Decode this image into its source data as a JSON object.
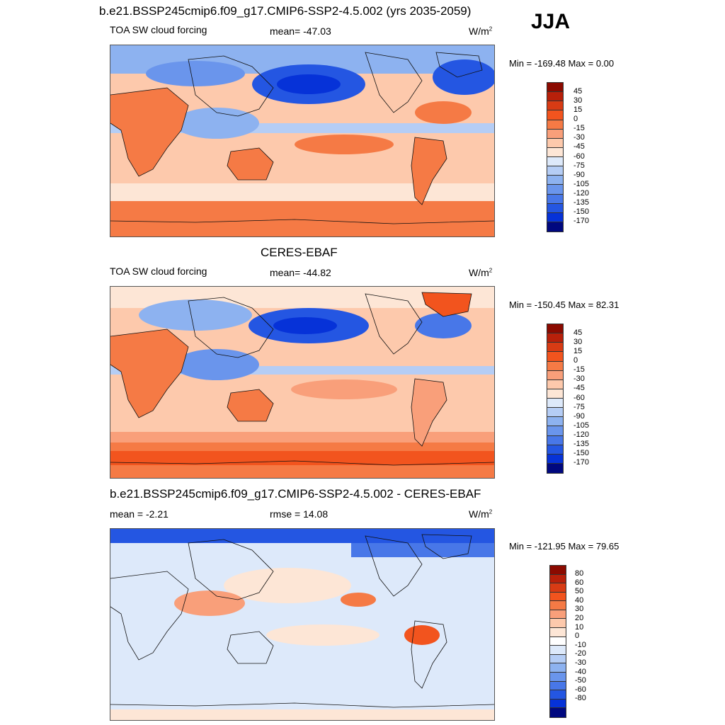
{
  "season": "JJA",
  "panels": [
    {
      "title": "b.e21.BSSP245cmip6.f09_g17.CMIP6-SSP2-4.5.002 (yrs 2035-2059)",
      "left_label": "TOA SW cloud forcing",
      "center_label": "mean= -47.03",
      "units": "W/m",
      "units_exp": "2",
      "minmax": "Min = -169.48 Max =   0.00",
      "colorbar": {
        "colors": [
          "#8b0a00",
          "#b8200a",
          "#d83b14",
          "#f2541e",
          "#f57a45",
          "#f99f7a",
          "#fdc9ac",
          "#fde6d6",
          "#dde9fa",
          "#b5cdf5",
          "#8db2f0",
          "#6a95ec",
          "#4877e8",
          "#2456e2",
          "#0632d8",
          "#00087f"
        ],
        "labels": [
          "45",
          "30",
          "15",
          "0",
          "-15",
          "-30",
          "-45",
          "-60",
          "-75",
          "-90",
          "-105",
          "-120",
          "-135",
          "-150",
          "-170"
        ]
      }
    },
    {
      "title": "CERES-EBAF",
      "left_label": "TOA SW cloud forcing",
      "center_label": "mean= -44.82",
      "units": "W/m",
      "units_exp": "2",
      "minmax": "Min = -150.45 Max =  82.31",
      "colorbar": {
        "colors": [
          "#8b0a00",
          "#b8200a",
          "#d83b14",
          "#f2541e",
          "#f57a45",
          "#f99f7a",
          "#fdc9ac",
          "#fde6d6",
          "#dde9fa",
          "#b5cdf5",
          "#8db2f0",
          "#6a95ec",
          "#4877e8",
          "#2456e2",
          "#0632d8",
          "#00087f"
        ],
        "labels": [
          "45",
          "30",
          "15",
          "0",
          "-15",
          "-30",
          "-45",
          "-60",
          "-75",
          "-90",
          "-105",
          "-120",
          "-135",
          "-150",
          "-170"
        ]
      }
    },
    {
      "title": "b.e21.BSSP245cmip6.f09_g17.CMIP6-SSP2-4.5.002 - CERES-EBAF",
      "left_label": "mean =  -2.21",
      "center_label": "rmse =  14.08",
      "units": "W/m",
      "units_exp": "2",
      "minmax": "Min = -121.95 Max =  79.65",
      "colorbar": {
        "colors": [
          "#8b0a00",
          "#b8200a",
          "#d83b14",
          "#f2541e",
          "#f57a45",
          "#f99f7a",
          "#fdc9ac",
          "#fde6d6",
          "#ffffff",
          "#dde9fa",
          "#b5cdf5",
          "#8db2f0",
          "#6a95ec",
          "#4877e8",
          "#2456e2",
          "#0632d8",
          "#00087f"
        ],
        "labels": [
          "80",
          "60",
          "50",
          "40",
          "30",
          "20",
          "10",
          "0",
          "-10",
          "-20",
          "-30",
          "-40",
          "-50",
          "-60",
          "-80"
        ]
      }
    }
  ],
  "colors": {
    "ocean_base_1": "#fdc9ac",
    "ocean_base_2": "#fdc9ac",
    "ocean_base_3": "#dde9fa",
    "coast": "#111111"
  }
}
